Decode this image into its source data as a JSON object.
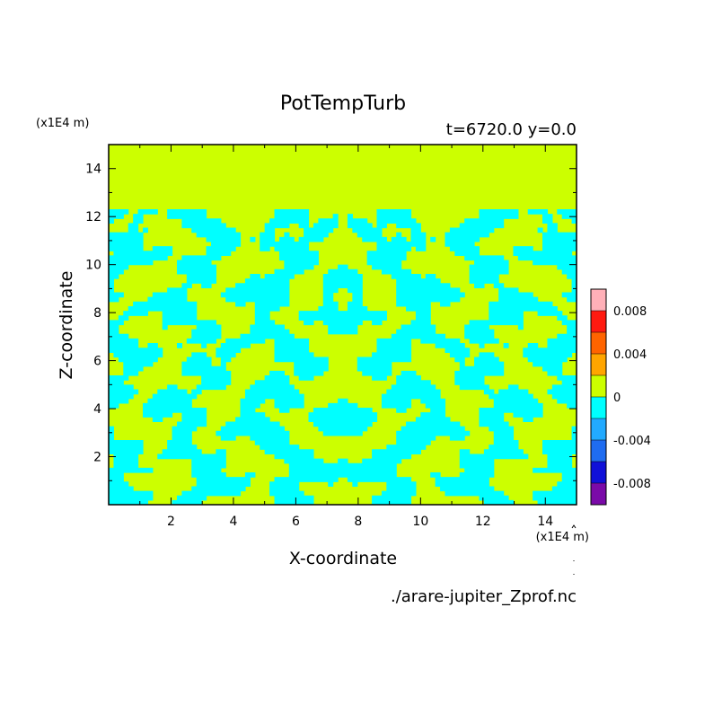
{
  "chart_data": {
    "type": "heatmap",
    "title": "PotTempTurb",
    "subtitle": "t=6720.0 y=0.0",
    "xlabel": "X-coordinate",
    "ylabel": "Z-coordinate",
    "x_unit": "(x1E4 m)",
    "y_unit": "(x1E4 m)",
    "xlim": [
      0,
      15
    ],
    "ylim": [
      0,
      15
    ],
    "x_ticks": [
      "2",
      "4",
      "6",
      "8",
      "10",
      "12",
      "14"
    ],
    "y_ticks": [
      "2",
      "4",
      "6",
      "8",
      "10",
      "12",
      "14"
    ],
    "source_file": "./arare-jupiter_Zprof.nc",
    "colorbar": {
      "tick_labels": [
        "0.008",
        "0.004",
        "0",
        "-0.004",
        "-0.008"
      ],
      "levels": [
        -0.01,
        -0.008,
        -0.006,
        -0.004,
        -0.002,
        0,
        0.002,
        0.004,
        0.006,
        0.008,
        0.01
      ],
      "colors": [
        "#7a0aa8",
        "#1010d8",
        "#1f6cf0",
        "#22aaff",
        "#00ffff",
        "#ccff00",
        "#ffa500",
        "#ff6400",
        "#ff1a10",
        "#ffb0b8"
      ]
    },
    "field_description_colors": {
      "positive_small": "#ccff00",
      "negative_small": "#00ffff"
    },
    "grid": false,
    "legend": "colorbar-right"
  }
}
